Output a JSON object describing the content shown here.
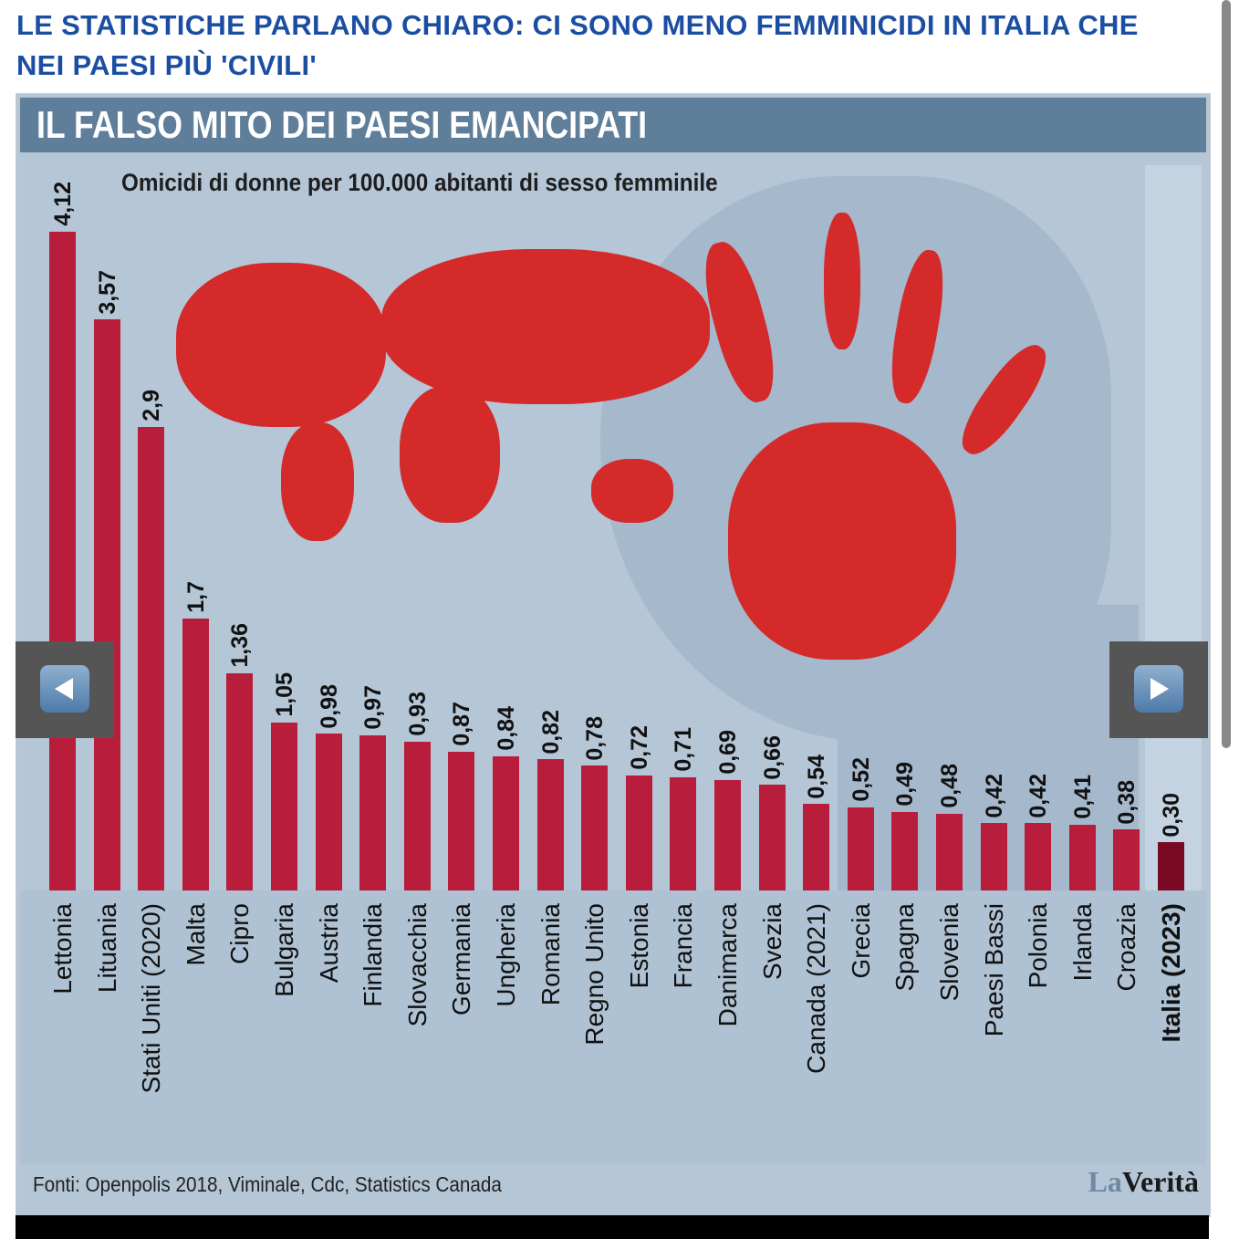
{
  "headline": "LE STATISTICHE PARLANO CHIARO: CI SONO MENO FEMMINICIDI IN ITALIA CHE NEI PAESI PIÙ 'CIVILI'",
  "carousel": {
    "prev_icon": "arrow-left-icon",
    "next_icon": "arrow-right-icon"
  },
  "chart_data": {
    "type": "bar",
    "title": "IL FALSO MITO DEI PAESI EMANCIPATI",
    "subtitle": "Omicidi di donne per 100.000 abitanti di sesso femminile",
    "categories": [
      "Lettonia",
      "Lituania",
      "Stati Uniti (2020)",
      "Malta",
      "Cipro",
      "Bulgaria",
      "Austria",
      "Finlandia",
      "Slovacchia",
      "Germania",
      "Ungheria",
      "Romania",
      "Regno Unito",
      "Estonia",
      "Francia",
      "Danimarca",
      "Svezia",
      "Canada (2021)",
      "Grecia",
      "Spagna",
      "Slovenia",
      "Paesi Bassi",
      "Polonia",
      "Irlanda",
      "Croazia",
      "Italia (2023)"
    ],
    "values": [
      4.12,
      3.57,
      2.9,
      1.7,
      1.36,
      1.05,
      0.98,
      0.97,
      0.93,
      0.87,
      0.84,
      0.82,
      0.78,
      0.72,
      0.71,
      0.69,
      0.66,
      0.54,
      0.52,
      0.49,
      0.48,
      0.42,
      0.42,
      0.41,
      0.38,
      0.3
    ],
    "value_labels": [
      "4,12",
      "3,57",
      "2,9",
      "1,7",
      "1,36",
      "1,05",
      "0,98",
      "0,97",
      "0,93",
      "0,87",
      "0,84",
      "0,82",
      "0,78",
      "0,72",
      "0,71",
      "0,69",
      "0,66",
      "0,54",
      "0,52",
      "0,49",
      "0,48",
      "0,42",
      "0,42",
      "0,41",
      "0,38",
      "0,30"
    ],
    "colors": {
      "bar": "#b81d3b",
      "highlight": "#7a0a24"
    },
    "highlight": "Italia (2023)",
    "ylim": [
      0,
      4.12
    ],
    "source": "Fonti: Openpolis 2018, Viminale, Cdc, Statistics Canada",
    "logo": "LaVerità"
  }
}
